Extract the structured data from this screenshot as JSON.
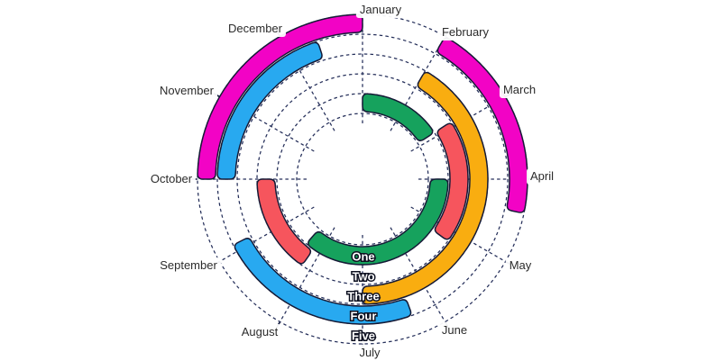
{
  "chart_data": {
    "type": "radial-bar",
    "title": "",
    "angular_axis": {
      "unit": "month",
      "categories": [
        "January",
        "February",
        "March",
        "April",
        "May",
        "June",
        "July",
        "August",
        "September",
        "October",
        "November",
        "December"
      ],
      "start_angle_deg": 0,
      "deg_per_category": 30,
      "direction": "clockwise",
      "grid": "dashed"
    },
    "radial_axis": {
      "categories": [
        "One",
        "Two",
        "Three",
        "Four",
        "Five"
      ],
      "order": "innermost-to-outermost",
      "grid": "dashed"
    },
    "series": [
      {
        "category": "One",
        "color": "#16A25D",
        "color_name": "green",
        "segments": [
          {
            "start_deg": 0,
            "end_deg": 57
          },
          {
            "start_deg": 90,
            "end_deg": 221
          }
        ]
      },
      {
        "category": "Two",
        "color": "#F6555D",
        "color_name": "red",
        "segments": [
          {
            "start_deg": 57,
            "end_deg": 126
          },
          {
            "start_deg": 215,
            "end_deg": 270
          }
        ]
      },
      {
        "category": "Three",
        "color": "#F9AD10",
        "color_name": "yellow",
        "segments": [
          {
            "start_deg": 30,
            "end_deg": 180
          }
        ]
      },
      {
        "category": "Four",
        "color": "#28A9F0",
        "color_name": "blue",
        "segments": [
          {
            "start_deg": 160,
            "end_deg": 243
          },
          {
            "start_deg": 270,
            "end_deg": 342
          }
        ]
      },
      {
        "category": "Five",
        "color": "#F203C5",
        "color_name": "magenta",
        "segments": [
          {
            "start_deg": 270,
            "end_deg": 360
          },
          {
            "start_deg": 30,
            "end_deg": 102
          }
        ]
      }
    ],
    "legend_position": "none"
  },
  "colors": {
    "background": "#ffffff",
    "grid_line": "#252F5A",
    "arc_outline": "#151A36",
    "tick": "#1B2345",
    "month_label_text": "#2b2b2b",
    "month_label_bg": "rgba(255,255,255,0.94)",
    "ring_label_fill": "#ffffff",
    "ring_label_stroke": "#0d1020"
  }
}
